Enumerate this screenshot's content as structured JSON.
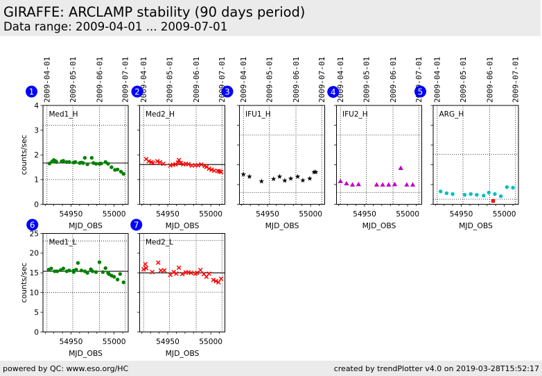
{
  "header": {
    "title": "GIRAFFE: ARCLAMP stability (90 days period)",
    "subtitle": "Data range: 2009-04-01 ... 2009-07-01"
  },
  "footer": {
    "left": "powered by QC: www.eso.org/HC",
    "right": "created by trendPlotter v4.0 on 2019-03-28T15:52:17"
  },
  "badge_color": "#0000ff",
  "chart_data": [
    {
      "type": "scatter",
      "badge": "1",
      "title": "Med1_H",
      "xlabel": "MJD_OBS",
      "ylabel": "counts/sec",
      "xlim": [
        54917.4,
        55016.4
      ],
      "ylim": [
        0,
        4
      ],
      "xticks": [
        54920,
        54930,
        54940,
        54950,
        54960,
        54970,
        54980,
        54990,
        55000,
        55010
      ],
      "xtick_label_values": [
        54950,
        55000
      ],
      "xtick_labels": [
        "54950",
        "55000"
      ],
      "yticks": [
        0,
        1,
        2,
        3,
        4
      ],
      "ytick_labels": [
        "0",
        "1",
        "2",
        "3",
        "4"
      ],
      "date_gridlines": [
        54922,
        54952,
        54983,
        55013
      ],
      "date_labels": [
        "2009-04-01",
        "2009-05-01",
        "2009-06-01",
        "2009-07-01"
      ],
      "thresholds": [
        3.2,
        1.0
      ],
      "median": 1.67,
      "grid": "dotted",
      "series": [
        {
          "name": "Med1_H",
          "marker": "circle",
          "color": "#008000",
          "x": [
            54925,
            54928,
            54930,
            54932,
            54933,
            54939,
            54941,
            54945,
            54948,
            54953,
            54955,
            54960,
            54962,
            54964,
            54966,
            54969,
            54974,
            54976,
            54979,
            54983,
            54985,
            54990,
            54993,
            54997,
            55001,
            55004,
            55008,
            55011
          ],
          "y": [
            1.65,
            1.73,
            1.79,
            1.75,
            1.71,
            1.73,
            1.76,
            1.71,
            1.71,
            1.69,
            1.71,
            1.67,
            1.69,
            1.67,
            1.88,
            1.62,
            1.88,
            1.67,
            1.64,
            1.64,
            1.65,
            1.71,
            1.64,
            1.5,
            1.39,
            1.41,
            1.32,
            1.23
          ]
        }
      ]
    },
    {
      "type": "scatter",
      "badge": "2",
      "title": "Med2_H",
      "xlabel": "MJD_OBS",
      "ylabel": "",
      "xlim": [
        54917.4,
        55016.4
      ],
      "ylim": [
        0,
        4
      ],
      "xticks": [
        54920,
        54930,
        54940,
        54950,
        54960,
        54970,
        54980,
        54990,
        55000,
        55010
      ],
      "xtick_label_values": [
        54950,
        55000
      ],
      "xtick_labels": [
        "54950",
        "55000"
      ],
      "yticks": [
        0,
        1,
        2,
        3,
        4
      ],
      "ytick_labels": [],
      "date_gridlines": [
        54922,
        54952,
        54983,
        55013
      ],
      "date_labels": [
        "2009-04-01",
        "2009-05-01",
        "2009-06-01",
        "2009-07-01"
      ],
      "thresholds": [
        3.2,
        1.0
      ],
      "median": 1.61,
      "grid": "dotted",
      "series": [
        {
          "name": "Med2_H",
          "marker": "x",
          "color": "#ff0000",
          "x": [
            54925,
            54928,
            54931,
            54933,
            54938,
            54941,
            54945,
            54953,
            54956,
            54959,
            54962,
            54963,
            54965,
            54968,
            54971,
            54974,
            54978,
            54982,
            54985,
            54989,
            54993,
            54995,
            54998,
            55001,
            55004,
            55008,
            55010,
            55012
          ],
          "y": [
            1.83,
            1.74,
            1.7,
            1.67,
            1.74,
            1.7,
            1.64,
            1.57,
            1.6,
            1.62,
            1.69,
            1.79,
            1.67,
            1.62,
            1.64,
            1.62,
            1.57,
            1.58,
            1.58,
            1.61,
            1.55,
            1.51,
            1.44,
            1.4,
            1.36,
            1.35,
            1.33,
            1.31
          ]
        }
      ]
    },
    {
      "type": "scatter",
      "badge": "3",
      "title": "IFU1_H",
      "xlabel": "MJD_OBS",
      "ylabel": "",
      "xlim": [
        54917.4,
        55016.4
      ],
      "ylim": [
        0,
        5
      ],
      "xticks": [
        54920,
        54930,
        54940,
        54950,
        54960,
        54970,
        54980,
        54990,
        55000,
        55010
      ],
      "xtick_label_values": [
        54950,
        55000
      ],
      "xtick_labels": [
        "54950",
        "55000"
      ],
      "yticks": [
        0,
        1,
        2,
        3,
        4,
        5
      ],
      "ytick_labels": [],
      "date_gridlines": [
        54922,
        54952,
        54983,
        55013
      ],
      "date_labels": [
        "2009-04-01",
        "2009-05-01",
        "2009-06-01",
        "2009-07-01"
      ],
      "thresholds": [
        3.5,
        0.6
      ],
      "median": null,
      "grid": "dotted",
      "series": [
        {
          "name": "IFU1_H",
          "marker": "star",
          "color": "#000000",
          "x": [
            54922,
            54929,
            54943,
            54957,
            54964,
            54970,
            54977,
            54985,
            54991,
            54999,
            55004,
            55006
          ],
          "y": [
            1.51,
            1.4,
            1.16,
            1.28,
            1.4,
            1.2,
            1.3,
            1.4,
            1.21,
            1.3,
            1.63,
            1.63
          ]
        }
      ]
    },
    {
      "type": "scatter",
      "badge": "4",
      "title": "IFU2_H",
      "xlabel": "MJD_OBS",
      "ylabel": "",
      "xlim": [
        54917.4,
        55016.4
      ],
      "ylim": [
        0,
        5
      ],
      "xticks": [
        54920,
        54930,
        54940,
        54950,
        54960,
        54970,
        54980,
        54990,
        55000,
        55010
      ],
      "xtick_label_values": [
        54950,
        55000
      ],
      "xtick_labels": [
        "54950",
        "55000"
      ],
      "yticks": [
        0,
        1,
        2,
        3,
        4,
        5
      ],
      "ytick_labels": [],
      "date_gridlines": [
        54922,
        54952,
        54983,
        55013
      ],
      "date_labels": [
        "2009-04-01",
        "2009-05-01",
        "2009-06-01",
        "2009-07-01"
      ],
      "thresholds": [
        3.5,
        0.6
      ],
      "median": null,
      "grid": "dotted",
      "series": [
        {
          "name": "IFU2_H",
          "marker": "triangle",
          "color": "#bf00bf",
          "x": [
            54922,
            54929,
            54936,
            54943,
            54964,
            54971,
            54978,
            54985,
            54992,
            54999,
            55006
          ],
          "y": [
            1.16,
            1.05,
            0.99,
            1.01,
            0.99,
            0.99,
            0.99,
            1.01,
            1.83,
            0.99,
            0.99
          ]
        }
      ]
    },
    {
      "type": "scatter",
      "badge": "5",
      "title": "ARG_H",
      "xlabel": "MJD_OBS",
      "ylabel": "",
      "xlim": [
        54917.4,
        55016.4
      ],
      "ylim": [
        0,
        5
      ],
      "xticks": [
        54920,
        54930,
        54940,
        54950,
        54960,
        54970,
        54980,
        54990,
        55000,
        55010
      ],
      "xtick_label_values": [
        54950,
        55000
      ],
      "xtick_labels": [
        "54950",
        "55000"
      ],
      "yticks": [
        0,
        1,
        2,
        3,
        4,
        5
      ],
      "ytick_labels": [],
      "date_gridlines": [
        54922,
        54952,
        54983,
        55013
      ],
      "date_labels": [
        "2009-04-01",
        "2009-05-01",
        "2009-06-01",
        "2009-07-01"
      ],
      "thresholds": [
        2.53,
        0.26
      ],
      "median": null,
      "grid": "dotted",
      "series": [
        {
          "name": "ARG_H",
          "marker": "circle",
          "color": "#00bfbf",
          "x": [
            54926,
            54933,
            54940,
            54954,
            54961,
            54968,
            54976,
            54982,
            54989,
            54996,
            55003,
            55010
          ],
          "y": [
            0.65,
            0.56,
            0.52,
            0.48,
            0.52,
            0.48,
            0.44,
            0.59,
            0.52,
            0.41,
            0.87,
            0.84
          ]
        },
        {
          "name": "ARG_H outlier",
          "marker": "square",
          "color": "#ff0000",
          "x": [
            54987
          ],
          "y": [
            0.17
          ]
        }
      ]
    },
    {
      "type": "scatter",
      "badge": "6",
      "title": "Med1_L",
      "xlabel": "MJD_OBS",
      "ylabel": "counts/sec",
      "xlim": [
        54917.4,
        55016.4
      ],
      "ylim": [
        0,
        25
      ],
      "xticks": [
        54920,
        54930,
        54940,
        54950,
        54960,
        54970,
        54980,
        54990,
        55000,
        55010
      ],
      "xtick_label_values": [
        54950,
        55000
      ],
      "xtick_labels": [
        "54950",
        "55000"
      ],
      "yticks": [
        0,
        5,
        10,
        15,
        20,
        25
      ],
      "ytick_labels": [
        "0",
        "5",
        "10",
        "15",
        "20",
        "25"
      ],
      "date_gridlines": [
        54922,
        54952,
        54983,
        55013
      ],
      "date_labels": [],
      "thresholds": [
        23.1,
        10.0
      ],
      "median": 15.4,
      "grid": "dotted",
      "series": [
        {
          "name": "Med1_L",
          "marker": "circle",
          "color": "#008000",
          "x": [
            54924,
            54927,
            54931,
            54934,
            54938,
            54941,
            54945,
            54948,
            54953,
            54953,
            54956,
            54958,
            54962,
            54966,
            54969,
            54973,
            54975,
            54979,
            54983,
            54987,
            54990,
            54993,
            54994,
            54997,
            55000,
            55004,
            55007,
            55011
          ],
          "y": [
            15.8,
            16.1,
            15.4,
            15.4,
            15.7,
            16.1,
            15.4,
            15.6,
            15.6,
            15.2,
            15.8,
            17.5,
            15.6,
            15.4,
            15.0,
            15.9,
            15.4,
            15.2,
            17.7,
            15.2,
            16.2,
            15.0,
            14.7,
            14.3,
            14.0,
            13.3,
            14.7,
            12.6
          ]
        }
      ]
    },
    {
      "type": "scatter",
      "badge": "7",
      "title": "Med2_L",
      "xlabel": "MJD_OBS",
      "ylabel": "",
      "xlim": [
        54917.4,
        55016.4
      ],
      "ylim": [
        0,
        25
      ],
      "xticks": [
        54920,
        54930,
        54940,
        54950,
        54960,
        54970,
        54980,
        54990,
        55000,
        55010
      ],
      "xtick_label_values": [
        54950,
        55000
      ],
      "xtick_labels": [
        "54950",
        "55000"
      ],
      "yticks": [
        0,
        5,
        10,
        15,
        20,
        25
      ],
      "ytick_labels": [],
      "date_gridlines": [
        54922,
        54952,
        54983,
        55013
      ],
      "date_labels": [],
      "thresholds": [
        23.2,
        10.1
      ],
      "median": 15.0,
      "grid": "dotted",
      "series": [
        {
          "name": "Med2_L",
          "marker": "x",
          "color": "#ff0000",
          "x": [
            54922,
            54924,
            54925,
            54932,
            54939,
            54942,
            54946,
            54953,
            54957,
            54960,
            54963,
            54967,
            54971,
            54974,
            54977,
            54982,
            54984,
            54988,
            54992,
            54995,
            54998,
            55003,
            55006,
            55009,
            55012
          ],
          "y": [
            15.9,
            17.2,
            16.2,
            15.2,
            17.6,
            15.6,
            15.6,
            14.5,
            15.2,
            14.8,
            16.3,
            14.7,
            15.1,
            15.1,
            15.0,
            14.8,
            15.0,
            15.7,
            14.7,
            14.0,
            14.8,
            13.2,
            12.9,
            12.6,
            13.5
          ]
        }
      ]
    }
  ]
}
